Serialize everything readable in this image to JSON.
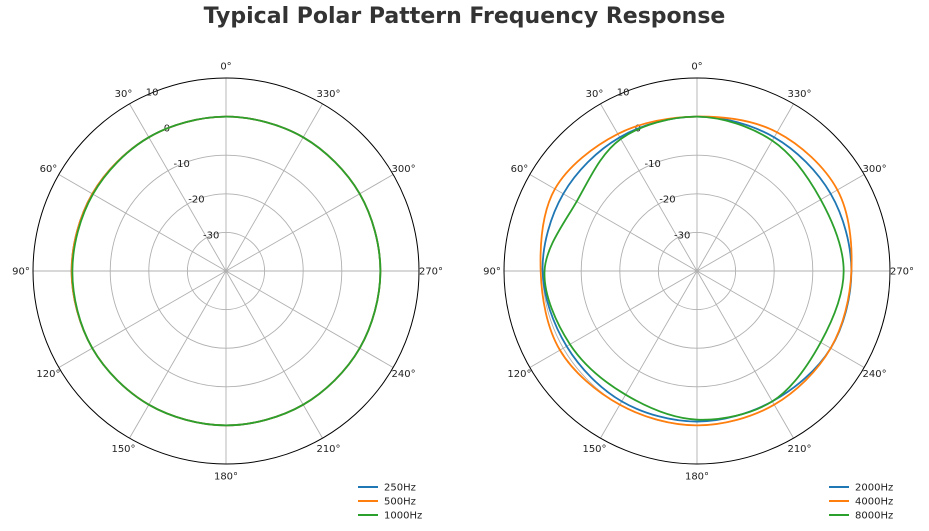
{
  "chart_data": {
    "title": "Typical Polar Pattern Frequency Response",
    "charts": [
      {
        "type": "polar-line",
        "r_range": [
          -40,
          10
        ],
        "r_ticks": [
          -30,
          -20,
          -10,
          0,
          10
        ],
        "theta_direction": "counterclockwise",
        "zero_location": "top",
        "theta_ticks": [
          "0°",
          "30°",
          "60°",
          "90°",
          "120°",
          "150°",
          "180°",
          "210°",
          "240°",
          "270°",
          "300°",
          "330°"
        ],
        "legend_position": "bottom-right",
        "grid": true,
        "angles_deg": [
          0,
          30,
          60,
          90,
          120,
          150,
          180,
          210,
          240,
          270,
          300,
          330
        ],
        "series": [
          {
            "name": "250Hz",
            "color": "#1f77b4",
            "values": [
              0,
              0,
              0,
              0,
              0,
              0,
              0,
              0,
              0,
              0,
              0,
              0
            ]
          },
          {
            "name": "500Hz",
            "color": "#ff7f0e",
            "values": [
              0,
              0,
              0,
              0,
              0,
              0,
              0,
              0,
              0,
              0,
              0,
              0
            ]
          },
          {
            "name": "1000Hz",
            "color": "#2ca02c",
            "values": [
              0,
              0,
              -0.2,
              -0.2,
              0,
              0,
              0,
              0,
              0,
              0,
              0,
              0
            ]
          }
        ]
      },
      {
        "type": "polar-line",
        "r_range": [
          -40,
          10
        ],
        "r_ticks": [
          -30,
          -20,
          -10,
          0,
          10
        ],
        "theta_direction": "counterclockwise",
        "zero_location": "top",
        "theta_ticks": [
          "0°",
          "30°",
          "60°",
          "90°",
          "120°",
          "150°",
          "180°",
          "210°",
          "240°",
          "270°",
          "300°",
          "330°"
        ],
        "legend_position": "bottom-right",
        "grid": true,
        "angles_deg": [
          0,
          30,
          60,
          90,
          120,
          150,
          180,
          210,
          240,
          270,
          300,
          330
        ],
        "series": [
          {
            "name": "2000Hz",
            "color": "#1f77b4",
            "values": [
              0,
              0,
              0,
              0,
              -1,
              -1,
              -1,
              -1,
              0,
              0,
              0,
              0
            ]
          },
          {
            "name": "4000Hz",
            "color": "#ff7f0e",
            "values": [
              0,
              1,
              2.5,
              0.5,
              1,
              0,
              0,
              0,
              0,
              0,
              2,
              1.5
            ]
          },
          {
            "name": "8000Hz",
            "color": "#2ca02c",
            "values": [
              0,
              -0.5,
              -4,
              -0.5,
              -2,
              -3,
              -1.5,
              -1,
              -3,
              -2,
              -3,
              -1
            ]
          }
        ]
      }
    ]
  }
}
